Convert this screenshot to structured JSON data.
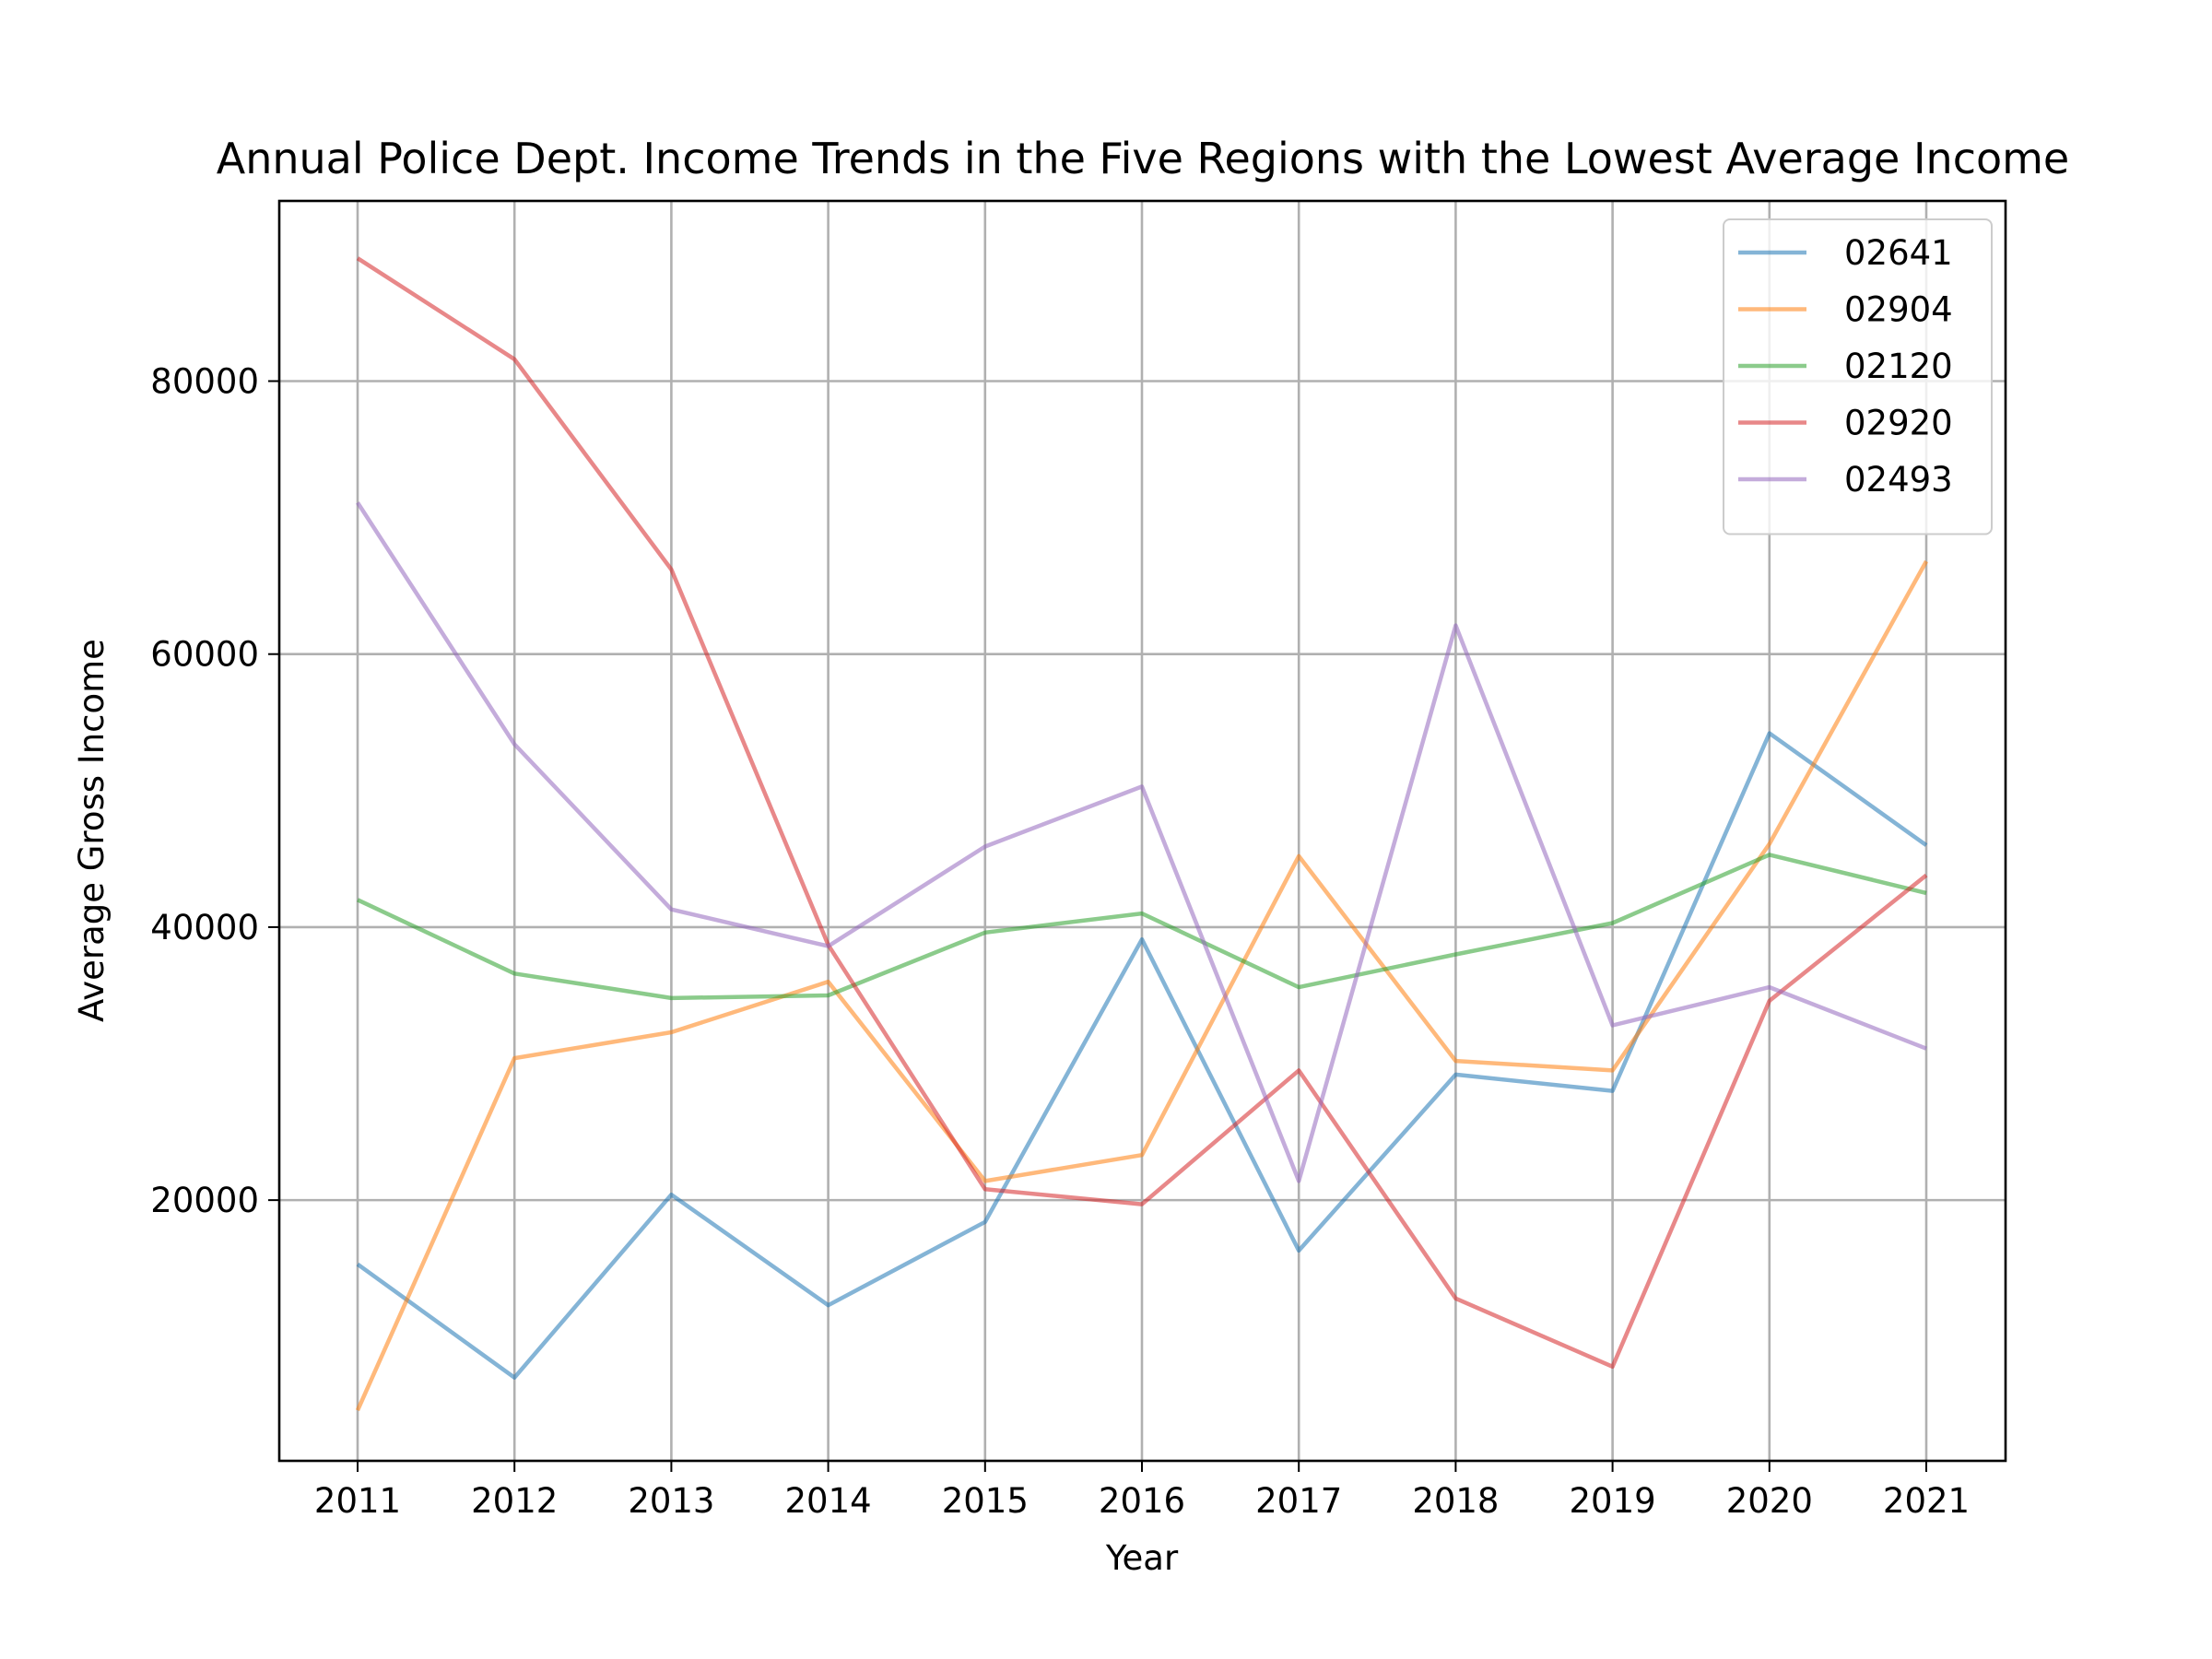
{
  "chart_data": {
    "type": "line",
    "title": "Annual Police Dept. Income Trends in the Five Regions with the Lowest Average Income",
    "xlabel": "Year",
    "ylabel": "Average Gross Income",
    "x": [
      "2011",
      "2012",
      "2013",
      "2014",
      "2015",
      "2016",
      "2017",
      "2018",
      "2019",
      "2020",
      "2021"
    ],
    "ylim": [
      900,
      93200
    ],
    "yticks": [
      20000,
      40000,
      60000,
      80000
    ],
    "grid": true,
    "legend_position": "top-right",
    "series": [
      {
        "name": "02641",
        "color": "#1f77b4",
        "values": [
          15300,
          7000,
          20400,
          12300,
          18400,
          39100,
          16300,
          29200,
          28000,
          54200,
          46000
        ]
      },
      {
        "name": "02904",
        "color": "#ff7f0e",
        "values": [
          4600,
          30400,
          32300,
          36000,
          21400,
          23300,
          45200,
          30200,
          29500,
          46100,
          66800
        ]
      },
      {
        "name": "02120",
        "color": "#2ca02c",
        "values": [
          42000,
          36600,
          34800,
          35000,
          39600,
          41000,
          35600,
          38000,
          40300,
          45300,
          42500
        ]
      },
      {
        "name": "02920",
        "color": "#d62728",
        "values": [
          89000,
          81600,
          66200,
          38700,
          20800,
          19700,
          29500,
          12800,
          7800,
          34600,
          43800
        ]
      },
      {
        "name": "02493",
        "color": "#9467bd",
        "values": [
          71100,
          53400,
          41300,
          38600,
          45900,
          50300,
          21400,
          62100,
          32800,
          35600,
          31100
        ]
      }
    ]
  }
}
